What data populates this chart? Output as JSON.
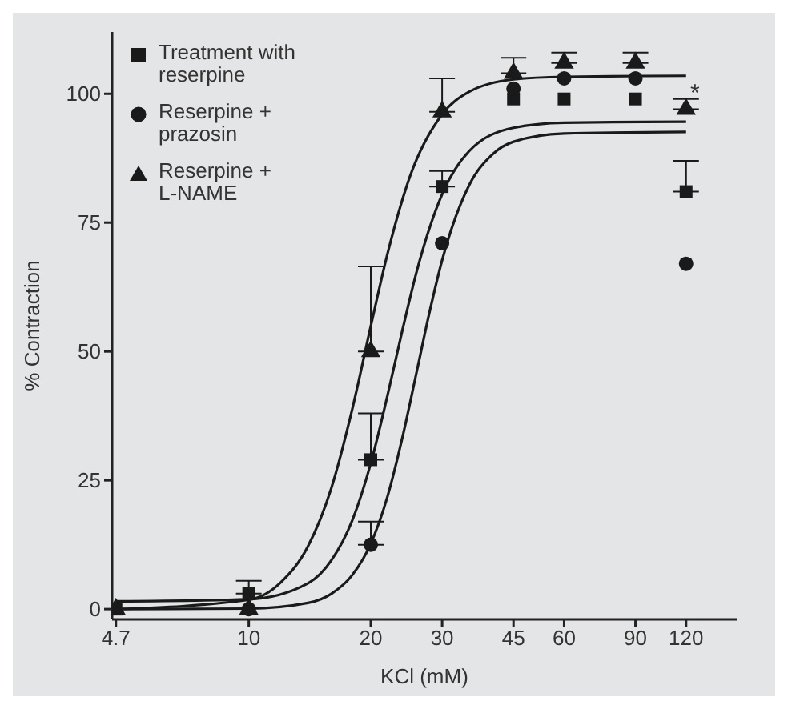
{
  "chart_data": {
    "type": "scatter",
    "xlabel": "KCl (mM)",
    "ylabel": "% Contraction",
    "log": "x",
    "xlim": [
      4.6,
      160
    ],
    "xticks": [
      4.7,
      10,
      20,
      30,
      45,
      60,
      90,
      120
    ],
    "ylim": [
      -2,
      112
    ],
    "yticks": [
      0,
      25,
      50,
      75,
      100
    ],
    "legend": "top left",
    "series": [
      {
        "name": "Treatment with reserpine",
        "marker": "square",
        "color": "#1a1a1a",
        "x": [
          4.7,
          10,
          20,
          30,
          45,
          60,
          90,
          120
        ],
        "values": [
          0,
          3,
          29,
          82,
          99,
          99,
          99,
          81
        ],
        "errors": [
          null,
          [
            3,
            5.5
          ],
          [
            29,
            38
          ],
          [
            82,
            85
          ],
          null,
          null,
          null,
          [
            81,
            87
          ]
        ]
      },
      {
        "name": "Reserpine + prazosin",
        "marker": "circle",
        "color": "#1a1a1a",
        "x": [
          10,
          20,
          30,
          45,
          60,
          90,
          120
        ],
        "values": [
          0,
          12.5,
          71,
          101,
          103,
          103,
          67
        ],
        "errors": [
          null,
          [
            12.5,
            17
          ],
          null,
          null,
          null,
          null,
          null
        ]
      },
      {
        "name": "Reserpine + L-NAME",
        "marker": "triangle",
        "color": "#1a1a1a",
        "x": [
          4.7,
          10,
          20,
          30,
          45,
          60,
          90,
          120
        ],
        "values": [
          0,
          0,
          50,
          96.5,
          104,
          106,
          106,
          97
        ],
        "errors": [
          null,
          null,
          [
            50,
            66.5
          ],
          [
            96.5,
            103
          ],
          [
            104,
            107
          ],
          [
            106,
            108
          ],
          [
            106,
            108
          ],
          [
            97,
            99
          ]
        ]
      },
      {
        "type": "line",
        "marker": "none",
        "line_style": "solid",
        "color": "#1a1a1a",
        "x": [
          4.7,
          10,
          12,
          14,
          16,
          18,
          20,
          22,
          25,
          30,
          35,
          45,
          60,
          120
        ],
        "values": [
          0,
          1.8,
          5.2,
          12.2,
          23.6,
          38.8,
          54.9,
          69,
          84,
          96,
          100.4,
          102.8,
          103.3,
          103.5
        ]
      },
      {
        "type": "line",
        "marker": "none",
        "line_style": "solid",
        "color": "#1a1a1a",
        "x": [
          4.7,
          10,
          14,
          16,
          18,
          20,
          22,
          24,
          26,
          30,
          35,
          45,
          60,
          120
        ],
        "values": [
          1.5,
          1.9,
          5,
          9.5,
          17.2,
          28.3,
          41.5,
          54.5,
          65.7,
          80.5,
          88.9,
          93.4,
          94.4,
          94.6
        ]
      },
      {
        "type": "line",
        "marker": "none",
        "line_style": "solid",
        "color": "#1a1a1a",
        "x": [
          4.7,
          10,
          14,
          16,
          18,
          20,
          22,
          24,
          26,
          28,
          30,
          35,
          40,
          45,
          60,
          120
        ],
        "values": [
          0,
          0.1,
          1.2,
          3,
          6.6,
          12.7,
          21.9,
          33.7,
          46.3,
          58,
          67.7,
          82.3,
          88.3,
          90.7,
          92.3,
          92.6
        ]
      }
    ],
    "annotations": [
      "*"
    ]
  }
}
